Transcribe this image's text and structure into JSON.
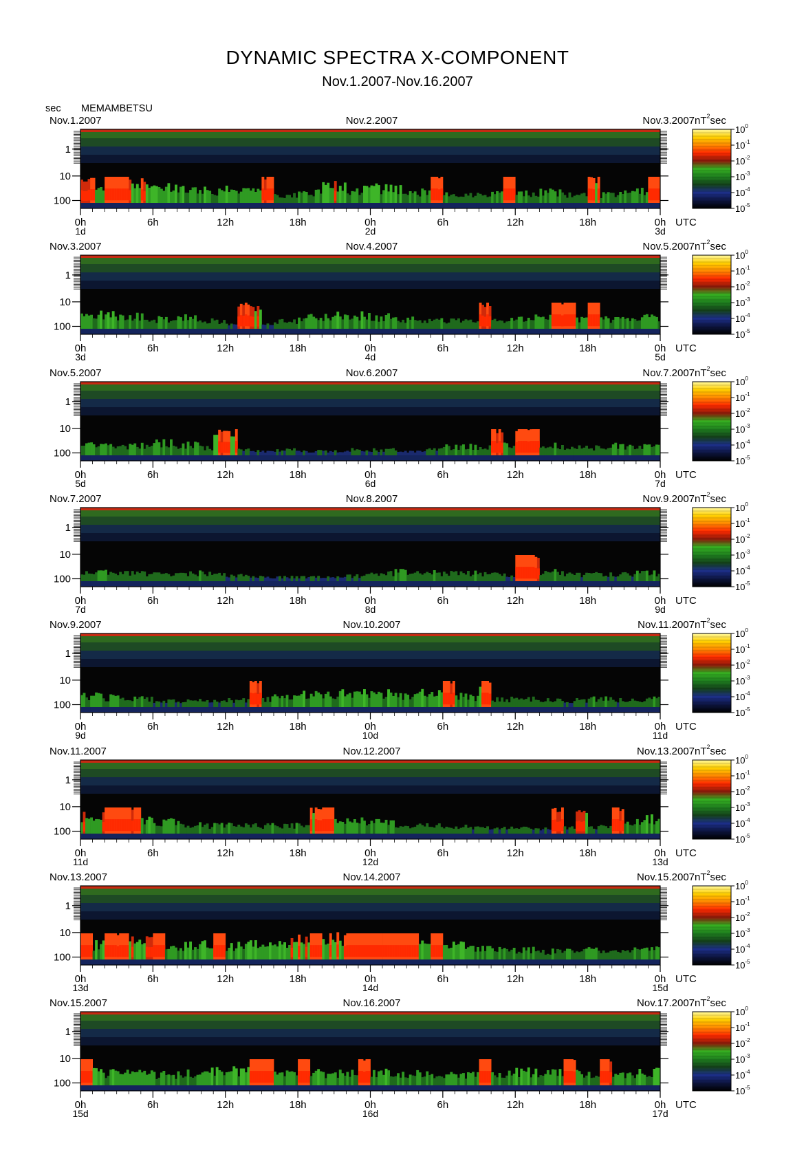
{
  "title": "DYNAMIC SPECTRA X-COMPONENT",
  "subtitle": "Nov.1.2007-Nov.16.2007",
  "y_unit": "sec",
  "station": "MEMAMBETSU",
  "colorbar_unit_prefix": "nT",
  "colorbar_unit_suffix": "sec",
  "colorbar_unit_power": "2",
  "utc_label": "UTC",
  "chart_data": {
    "type": "heatmap",
    "x_ticks": [
      "0h",
      "6h",
      "12h",
      "18h",
      "0h",
      "6h",
      "12h",
      "18h",
      "0h"
    ],
    "y_ticks": [
      "1",
      "10",
      "100"
    ],
    "colorbar_ticks": [
      "0",
      "-1",
      "-2",
      "-3",
      "-4",
      "-5"
    ],
    "colorbar_base": "10",
    "colorbar_colors": [
      "#000000",
      "#0d1540",
      "#1d2f8a",
      "#14421a",
      "#1f7f1f",
      "#35b021",
      "#8c1a0a",
      "#ff2a00",
      "#ff8800",
      "#ffd000",
      "#fff8a0"
    ],
    "panels": [
      {
        "left_date": "Nov.1.2007",
        "mid_date": "Nov.2.2007",
        "right_date": "Nov.3.2007",
        "day_labels": [
          "1d",
          "2d",
          "3d"
        ],
        "activity": [
          0.7,
          0.75,
          0.7,
          0.55,
          0.5,
          0.45,
          0.5,
          0.45,
          0.3,
          0.4,
          0.6,
          0.5,
          0.55,
          0.5,
          0.4,
          0.35,
          0.3,
          0.35,
          0.35,
          0.4,
          0.3,
          0.3,
          0.35,
          0.45
        ],
        "bursts": [
          2,
          3,
          15,
          29,
          35,
          42,
          47
        ]
      },
      {
        "left_date": "Nov.3.2007",
        "mid_date": "Nov.4.2007",
        "right_date": "Nov.5.2007",
        "day_labels": [
          "3d",
          "4d",
          "5d"
        ],
        "activity": [
          0.55,
          0.5,
          0.45,
          0.35,
          0.4,
          0.3,
          0.2,
          0.15,
          0.3,
          0.45,
          0.5,
          0.5,
          0.45,
          0.35,
          0.3,
          0.3,
          0.25,
          0.3,
          0.4,
          0.45,
          0.4,
          0.35,
          0.35,
          0.4
        ],
        "bursts": [
          13,
          14,
          33,
          39,
          40,
          42
        ]
      },
      {
        "left_date": "Nov.5.2007",
        "mid_date": "Nov.6.2007",
        "right_date": "Nov.7.2007",
        "day_labels": [
          "5d",
          "6d",
          "7d"
        ],
        "activity": [
          0.4,
          0.35,
          0.35,
          0.45,
          0.4,
          0.3,
          0.2,
          0.15,
          0.2,
          0.15,
          0.15,
          0.2,
          0.2,
          0.15,
          0.2,
          0.3,
          0.35,
          0.4,
          0.45,
          0.35,
          0.3,
          0.3,
          0.35,
          0.35
        ],
        "bursts": [
          11,
          12,
          34,
          36,
          37
        ]
      },
      {
        "left_date": "Nov.7.2007",
        "mid_date": "Nov.8.2007",
        "right_date": "Nov.9.2007",
        "day_labels": [
          "7d",
          "8d",
          "9d"
        ],
        "activity": [
          0.3,
          0.35,
          0.3,
          0.25,
          0.3,
          0.3,
          0.2,
          0.15,
          0.15,
          0.15,
          0.15,
          0.2,
          0.3,
          0.35,
          0.3,
          0.3,
          0.3,
          0.25,
          0.3,
          0.35,
          0.25,
          0.25,
          0.25,
          0.3
        ],
        "bursts": [
          36,
          37
        ]
      },
      {
        "left_date": "Nov.9.2007",
        "mid_date": "Nov.10.2007",
        "right_date": "Nov.11.2007",
        "day_labels": [
          "9d",
          "10d",
          "11d"
        ],
        "activity": [
          0.4,
          0.35,
          0.3,
          0.25,
          0.25,
          0.2,
          0.25,
          0.3,
          0.4,
          0.45,
          0.5,
          0.55,
          0.5,
          0.45,
          0.5,
          0.45,
          0.35,
          0.3,
          0.3,
          0.25,
          0.25,
          0.3,
          0.25,
          0.3
        ],
        "bursts": [
          14,
          30,
          33
        ]
      },
      {
        "left_date": "Nov.11.2007",
        "mid_date": "Nov.12.2007",
        "right_date": "Nov.13.2007",
        "day_labels": [
          "11d",
          "12d",
          "13d"
        ],
        "activity": [
          0.6,
          0.55,
          0.5,
          0.45,
          0.35,
          0.3,
          0.3,
          0.3,
          0.3,
          0.3,
          0.4,
          0.45,
          0.4,
          0.3,
          0.3,
          0.25,
          0.2,
          0.2,
          0.2,
          0.2,
          0.2,
          0.25,
          0.4,
          0.55
        ],
        "bursts": [
          2,
          3,
          4,
          19,
          20,
          39,
          41,
          44
        ]
      },
      {
        "left_date": "Nov.13.2007",
        "mid_date": "Nov.14.2007",
        "right_date": "Nov.15.2007",
        "day_labels": [
          "13d",
          "14d",
          "15d"
        ],
        "activity": [
          0.55,
          0.6,
          0.65,
          0.55,
          0.5,
          0.55,
          0.5,
          0.55,
          0.6,
          0.7,
          0.75,
          0.8,
          0.75,
          0.6,
          0.55,
          0.5,
          0.4,
          0.35,
          0.35,
          0.3,
          0.3,
          0.35,
          0.4,
          0.45
        ],
        "bursts": [
          0,
          2,
          3,
          6,
          11,
          19,
          22,
          23,
          24,
          25,
          26,
          27,
          29
        ]
      },
      {
        "left_date": "Nov.15.2007",
        "mid_date": "Nov.16.2007",
        "right_date": "Nov.17.2007",
        "day_labels": [
          "15d",
          "16d",
          "17d"
        ],
        "activity": [
          0.5,
          0.45,
          0.45,
          0.4,
          0.45,
          0.5,
          0.55,
          0.55,
          0.5,
          0.5,
          0.45,
          0.5,
          0.5,
          0.45,
          0.45,
          0.4,
          0.4,
          0.45,
          0.5,
          0.45,
          0.45,
          0.4,
          0.45,
          0.5
        ],
        "bursts": [
          0,
          14,
          15,
          18,
          23,
          33,
          40,
          43
        ]
      }
    ]
  }
}
